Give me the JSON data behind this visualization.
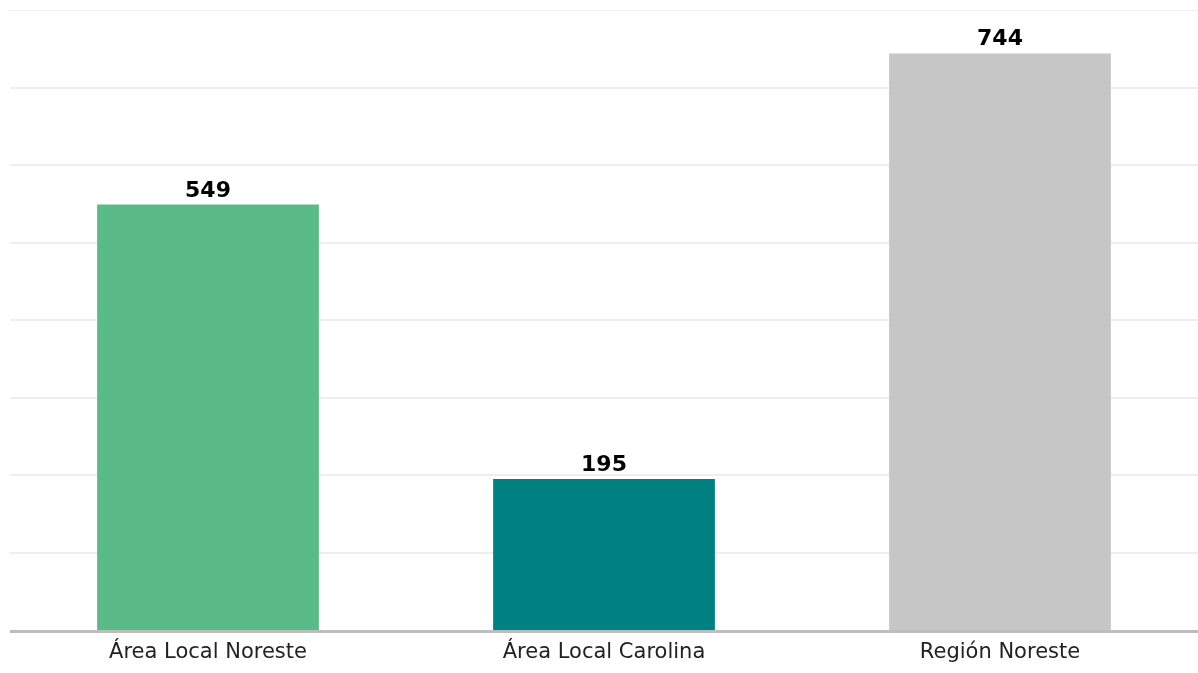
{
  "chart_data": {
    "type": "bar",
    "categories": [
      "Área Local Noreste",
      "Área Local Carolina",
      "Región Noreste"
    ],
    "values": [
      549,
      195,
      744
    ],
    "colors": [
      "#5aba88",
      "#008080",
      "#c6c6c6"
    ],
    "data_labels": true,
    "ylim": [
      0,
      800
    ],
    "yticks": [
      {
        "value": 0,
        "label": null
      },
      {
        "value": 100,
        "label": null
      },
      {
        "value": 200,
        "label": null
      },
      {
        "value": 300,
        "label": null
      },
      {
        "value": 400,
        "label": null
      },
      {
        "value": 500,
        "label": null
      },
      {
        "value": 600,
        "label": null
      },
      {
        "value": 700,
        "label": null
      }
    ],
    "grid": "y",
    "tick_labels": "x"
  }
}
